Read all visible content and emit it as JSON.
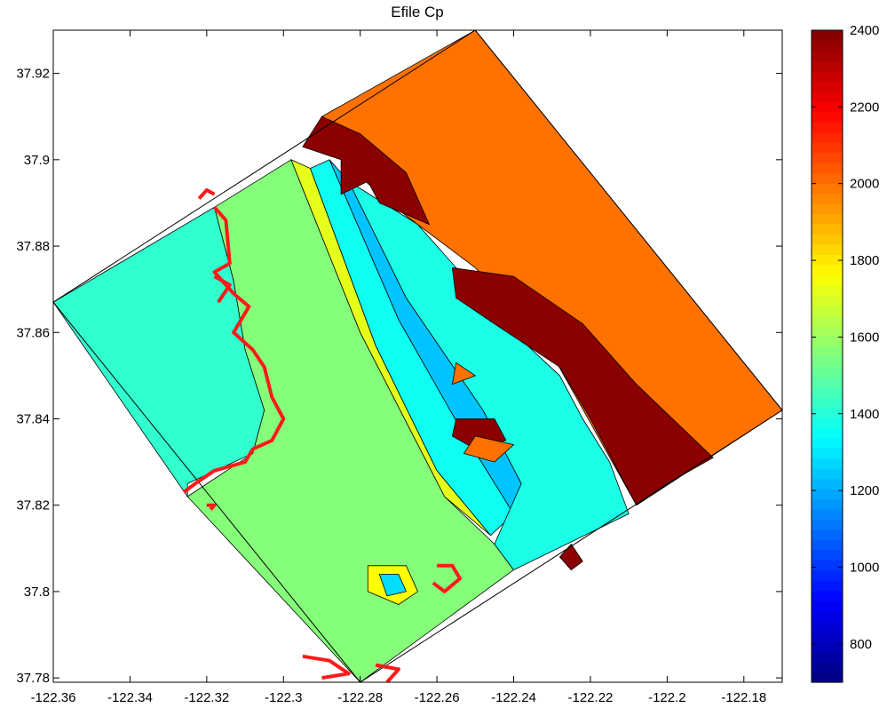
{
  "chart_data": {
    "type": "heatmap",
    "title": "Efile Cp",
    "xlim": [
      -122.36,
      -122.17
    ],
    "ylim": [
      37.779,
      37.93
    ],
    "xticks": [
      -122.36,
      -122.34,
      -122.32,
      -122.3,
      -122.28,
      -122.26,
      -122.24,
      -122.22,
      -122.2,
      -122.18
    ],
    "xtick_labels": [
      "-122.36",
      "-122.34",
      "-122.32",
      "-122.3",
      "-122.28",
      "-122.26",
      "-122.24",
      "-122.22",
      "-122.2",
      "-122.18"
    ],
    "yticks": [
      37.78,
      37.8,
      37.82,
      37.84,
      37.86,
      37.88,
      37.9,
      37.92
    ],
    "ytick_labels": [
      "37.78",
      "37.8",
      "37.82",
      "37.84",
      "37.86",
      "37.88",
      "37.9",
      "37.92"
    ],
    "colorbar": {
      "colormap": "jet",
      "clim": [
        700,
        2400
      ],
      "ticks": [
        800,
        1000,
        1200,
        1400,
        1600,
        1800,
        2000,
        2200,
        2400
      ],
      "tick_labels": [
        "800",
        "1000",
        "1200",
        "1400",
        "1600",
        "1800",
        "2000",
        "2200",
        "2400"
      ]
    },
    "domain_corners": [
      {
        "lon": -122.36,
        "lat": 37.867
      },
      {
        "lon": -122.25,
        "lat": 37.93
      },
      {
        "lon": -122.17,
        "lat": 37.842
      },
      {
        "lon": -122.28,
        "lat": 37.779
      }
    ],
    "regions": [
      {
        "name": "offshore-bay",
        "value": 1420,
        "points": [
          [
            -122.36,
            37.867
          ],
          [
            -122.318,
            37.889
          ],
          [
            -122.313,
            37.872
          ],
          [
            -122.31,
            37.856
          ],
          [
            -122.305,
            37.842
          ],
          [
            -122.308,
            37.832
          ],
          [
            -122.325,
            37.825
          ],
          [
            -122.325,
            37.822
          ]
        ]
      },
      {
        "name": "shallow-bay",
        "value": 1560,
        "points": [
          [
            -122.318,
            37.889
          ],
          [
            -122.298,
            37.9
          ],
          [
            -122.28,
            37.86
          ],
          [
            -122.258,
            37.822
          ],
          [
            -122.245,
            37.811
          ],
          [
            -122.24,
            37.805
          ],
          [
            -122.28,
            37.779
          ],
          [
            -122.325,
            37.822
          ],
          [
            -122.308,
            37.832
          ],
          [
            -122.305,
            37.842
          ],
          [
            -122.31,
            37.856
          ],
          [
            -122.313,
            37.872
          ]
        ]
      },
      {
        "name": "yellow-band",
        "value": 1720,
        "points": [
          [
            -122.298,
            37.9
          ],
          [
            -122.293,
            37.898
          ],
          [
            -122.276,
            37.857
          ],
          [
            -122.26,
            37.828
          ],
          [
            -122.246,
            37.813
          ],
          [
            -122.258,
            37.822
          ],
          [
            -122.28,
            37.86
          ]
        ]
      },
      {
        "name": "cyan-band",
        "value": 1360,
        "points": [
          [
            -122.293,
            37.898
          ],
          [
            -122.288,
            37.9
          ],
          [
            -122.27,
            37.863
          ],
          [
            -122.254,
            37.838
          ],
          [
            -122.24,
            37.818
          ],
          [
            -122.246,
            37.813
          ],
          [
            -122.26,
            37.828
          ],
          [
            -122.276,
            37.857
          ]
        ]
      },
      {
        "name": "blue-band",
        "value": 1240,
        "points": [
          [
            -122.288,
            37.9
          ],
          [
            -122.283,
            37.895
          ],
          [
            -122.268,
            37.868
          ],
          [
            -122.248,
            37.842
          ],
          [
            -122.238,
            37.825
          ],
          [
            -122.24,
            37.818
          ],
          [
            -122.254,
            37.838
          ],
          [
            -122.27,
            37.863
          ]
        ]
      },
      {
        "name": "mixed-zone",
        "value": 1380,
        "points": [
          [
            -122.283,
            37.895
          ],
          [
            -122.265,
            37.885
          ],
          [
            -122.24,
            37.86
          ],
          [
            -122.228,
            37.85
          ],
          [
            -122.222,
            37.84
          ],
          [
            -122.215,
            37.83
          ],
          [
            -122.21,
            37.818
          ],
          [
            -122.24,
            37.805
          ],
          [
            -122.245,
            37.811
          ],
          [
            -122.238,
            37.825
          ],
          [
            -122.248,
            37.842
          ],
          [
            -122.268,
            37.868
          ]
        ]
      },
      {
        "name": "eastern-uplands",
        "value": 2000,
        "points": [
          [
            -122.29,
            37.91
          ],
          [
            -122.25,
            37.93
          ],
          [
            -122.17,
            37.842
          ],
          [
            -122.208,
            37.82
          ],
          [
            -122.23,
            37.855
          ],
          [
            -122.25,
            37.875
          ],
          [
            -122.268,
            37.887
          ],
          [
            -122.28,
            37.896
          ]
        ]
      },
      {
        "name": "dark-ridge-north",
        "value": 2380,
        "points": [
          [
            -122.295,
            37.903
          ],
          [
            -122.285,
            37.9
          ],
          [
            -122.285,
            37.892
          ],
          [
            -122.278,
            37.895
          ],
          [
            -122.275,
            37.89
          ],
          [
            -122.262,
            37.885
          ],
          [
            -122.268,
            37.897
          ],
          [
            -122.28,
            37.906
          ],
          [
            -122.29,
            37.91
          ]
        ]
      },
      {
        "name": "dark-ridge-south",
        "value": 2380,
        "points": [
          [
            -122.256,
            37.875
          ],
          [
            -122.24,
            37.873
          ],
          [
            -122.222,
            37.862
          ],
          [
            -122.208,
            37.848
          ],
          [
            -122.188,
            37.831
          ],
          [
            -122.2,
            37.825
          ],
          [
            -122.208,
            37.82
          ],
          [
            -122.22,
            37.84
          ],
          [
            -122.228,
            37.852
          ],
          [
            -122.245,
            37.862
          ],
          [
            -122.255,
            37.868
          ]
        ]
      },
      {
        "name": "dark-patch-mid",
        "value": 2380,
        "points": [
          [
            -122.255,
            37.84
          ],
          [
            -122.245,
            37.84
          ],
          [
            -122.242,
            37.835
          ],
          [
            -122.25,
            37.833
          ],
          [
            -122.256,
            37.836
          ]
        ]
      },
      {
        "name": "dark-patch-low",
        "value": 2380,
        "points": [
          [
            -122.225,
            37.811
          ],
          [
            -122.222,
            37.807
          ],
          [
            -122.225,
            37.805
          ],
          [
            -122.228,
            37.808
          ]
        ]
      },
      {
        "name": "orange-patch-mid",
        "value": 2000,
        "points": [
          [
            -122.25,
            37.836
          ],
          [
            -122.24,
            37.834
          ],
          [
            -122.245,
            37.83
          ],
          [
            -122.253,
            37.832
          ]
        ]
      },
      {
        "name": "orange-patch-north",
        "value": 2000,
        "points": [
          [
            -122.255,
            37.853
          ],
          [
            -122.25,
            37.85
          ],
          [
            -122.256,
            37.848
          ]
        ]
      },
      {
        "name": "yellow-blob",
        "value": 1760,
        "points": [
          [
            -122.278,
            37.806
          ],
          [
            -122.268,
            37.806
          ],
          [
            -122.265,
            37.8
          ],
          [
            -122.27,
            37.797
          ],
          [
            -122.278,
            37.8
          ]
        ]
      },
      {
        "name": "blue-blob",
        "value": 1280,
        "points": [
          [
            -122.275,
            37.804
          ],
          [
            -122.27,
            37.804
          ],
          [
            -122.268,
            37.8
          ],
          [
            -122.273,
            37.799
          ]
        ]
      }
    ],
    "contour_2200": [
      [
        [
          -122.318,
          37.889
        ],
        [
          -122.315,
          37.886
        ],
        [
          -122.314,
          37.876
        ],
        [
          -122.318,
          37.874
        ],
        [
          -122.313,
          37.869
        ],
        [
          -122.309,
          37.866
        ],
        [
          -122.313,
          37.86
        ],
        [
          -122.308,
          37.856
        ],
        [
          -122.305,
          37.852
        ],
        [
          -122.303,
          37.845
        ],
        [
          -122.3,
          37.84
        ],
        [
          -122.303,
          37.835
        ],
        [
          -122.308,
          37.833
        ],
        [
          -122.31,
          37.83
        ],
        [
          -122.318,
          37.828
        ],
        [
          -122.323,
          37.825
        ],
        [
          -122.326,
          37.823
        ]
      ],
      [
        [
          -122.318,
          37.873
        ],
        [
          -122.314,
          37.871
        ],
        [
          -122.317,
          37.867
        ]
      ],
      [
        [
          -122.32,
          37.82
        ],
        [
          -122.318,
          37.82
        ],
        [
          -122.319,
          37.819
        ]
      ],
      [
        [
          -122.26,
          37.806
        ],
        [
          -122.256,
          37.806
        ],
        [
          -122.254,
          37.803
        ],
        [
          -122.258,
          37.8
        ],
        [
          -122.261,
          37.802
        ]
      ],
      [
        [
          -122.295,
          37.785
        ],
        [
          -122.288,
          37.784
        ],
        [
          -122.283,
          37.781
        ],
        [
          -122.29,
          37.78
        ]
      ],
      [
        [
          -122.276,
          37.783
        ],
        [
          -122.27,
          37.782
        ],
        [
          -122.273,
          37.779
        ]
      ],
      [
        [
          -122.322,
          37.891
        ],
        [
          -122.32,
          37.893
        ],
        [
          -122.318,
          37.892
        ]
      ]
    ]
  }
}
